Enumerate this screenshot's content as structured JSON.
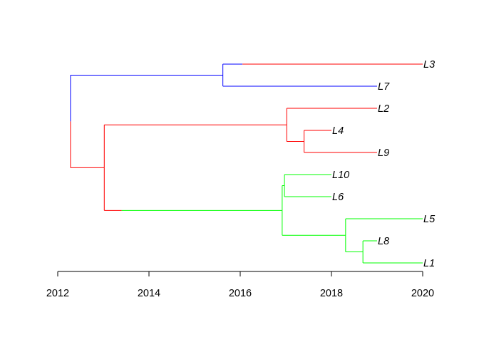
{
  "tree": {
    "colors": {
      "blue": "#0000ff",
      "red": "#ff0000",
      "green": "#00ff00"
    },
    "nodes": {
      "root": {
        "time": 2012.28
      },
      "n_top": {
        "time": 2015.62
      },
      "n_main": {
        "time": 2013.02
      },
      "n_red": {
        "time": 2017.02
      },
      "n_red49": {
        "time": 2017.4
      },
      "n_green": {
        "time": 2016.92
      },
      "n_green106": {
        "time": 2016.97
      },
      "n_green518": {
        "time": 2018.31
      },
      "n_green81": {
        "time": 2018.69
      }
    },
    "tips": [
      {
        "id": "L3",
        "label": "L3",
        "time": 2020.0
      },
      {
        "id": "L7",
        "label": "L7",
        "time": 2019.0
      },
      {
        "id": "L2",
        "label": "L2",
        "time": 2019.0
      },
      {
        "id": "L4",
        "label": "L4",
        "time": 2018.0
      },
      {
        "id": "L9",
        "label": "L9",
        "time": 2019.0
      },
      {
        "id": "L10",
        "label": "L10",
        "time": 2018.0
      },
      {
        "id": "L6",
        "label": "L6",
        "time": 2018.0
      },
      {
        "id": "L5",
        "label": "L5",
        "time": 2020.0
      },
      {
        "id": "L8",
        "label": "L8",
        "time": 2019.0
      },
      {
        "id": "L1",
        "label": "L1",
        "time": 2020.0
      }
    ],
    "edges": [
      {
        "parent": "root",
        "child": "n_top",
        "color": "blue"
      },
      {
        "parent": "root",
        "child": "n_main",
        "color": "red"
      },
      {
        "parent": "n_top",
        "child": "L3",
        "color": "blue",
        "switch_to": "red",
        "switch_time": 2016.05
      },
      {
        "parent": "n_top",
        "child": "L7",
        "color": "blue"
      },
      {
        "parent": "n_main",
        "child": "n_red",
        "color": "red"
      },
      {
        "parent": "n_main",
        "child": "n_green",
        "color": "red",
        "switch_to": "green",
        "switch_time": 2013.4
      },
      {
        "parent": "n_red",
        "child": "L2",
        "color": "red"
      },
      {
        "parent": "n_red",
        "child": "n_red49",
        "color": "red"
      },
      {
        "parent": "n_red49",
        "child": "L4",
        "color": "red"
      },
      {
        "parent": "n_red49",
        "child": "L9",
        "color": "red"
      },
      {
        "parent": "n_green",
        "child": "n_green106",
        "color": "green"
      },
      {
        "parent": "n_green",
        "child": "n_green518",
        "color": "green"
      },
      {
        "parent": "n_green106",
        "child": "L10",
        "color": "green"
      },
      {
        "parent": "n_green106",
        "child": "L6",
        "color": "green"
      },
      {
        "parent": "n_green518",
        "child": "L5",
        "color": "green"
      },
      {
        "parent": "n_green518",
        "child": "n_green81",
        "color": "green"
      },
      {
        "parent": "n_green81",
        "child": "L8",
        "color": "green"
      },
      {
        "parent": "n_green81",
        "child": "L1",
        "color": "green"
      }
    ]
  },
  "axis": {
    "range": [
      2012,
      2020
    ],
    "ticks": [
      {
        "value": 2012,
        "label": "2012"
      },
      {
        "value": 2014,
        "label": "2014"
      },
      {
        "value": 2016,
        "label": "2016"
      },
      {
        "value": 2018,
        "label": "2018"
      },
      {
        "value": 2020,
        "label": "2020"
      }
    ]
  }
}
